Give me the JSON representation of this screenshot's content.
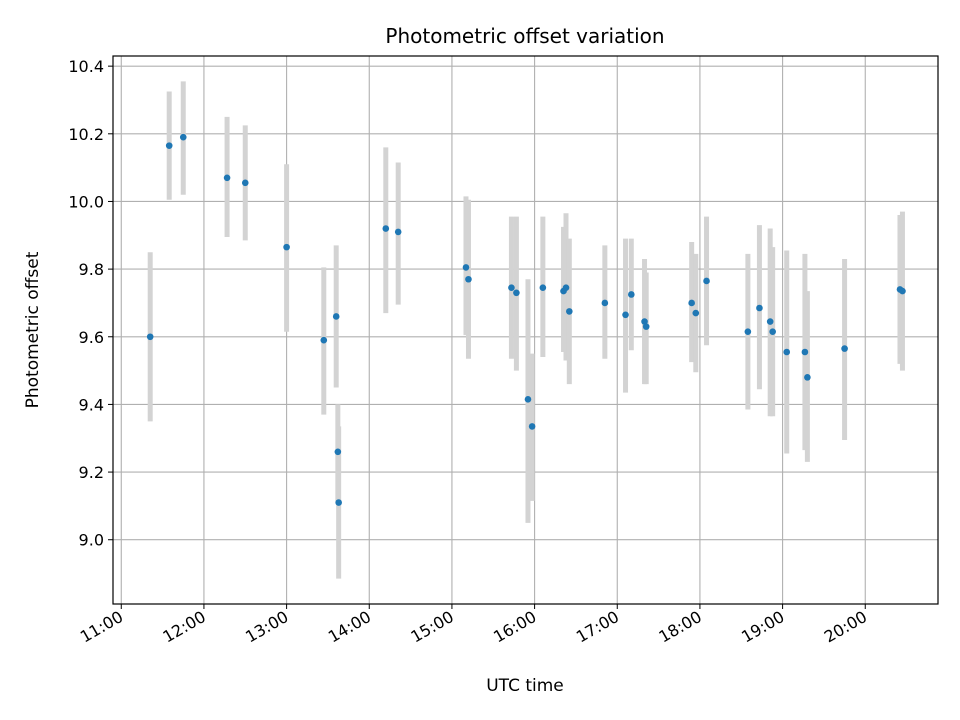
{
  "chart_data": {
    "type": "scatter",
    "title": "Photometric offset variation",
    "xlabel": "UTC time",
    "ylabel": "Photometric offset",
    "x_unit": "hours UTC",
    "xlim": [
      10.9,
      20.88
    ],
    "ylim": [
      8.81,
      10.43
    ],
    "xticks": [
      11,
      12,
      13,
      14,
      15,
      16,
      17,
      18,
      19,
      20
    ],
    "xtick_labels": [
      "11:00",
      "12:00",
      "13:00",
      "14:00",
      "15:00",
      "16:00",
      "17:00",
      "18:00",
      "19:00",
      "20:00"
    ],
    "yticks": [
      9.0,
      9.2,
      9.4,
      9.6,
      9.8,
      10.0,
      10.2,
      10.4
    ],
    "ytick_labels": [
      "9.0",
      "9.2",
      "9.4",
      "9.6",
      "9.8",
      "10.0",
      "10.2",
      "10.4"
    ],
    "grid": true,
    "point_color": "#1f77b4",
    "errorbar_color": "#d3d3d3",
    "points": [
      {
        "x": 11.35,
        "y": 9.6,
        "lo": 9.35,
        "hi": 9.85
      },
      {
        "x": 11.58,
        "y": 10.165,
        "lo": 10.005,
        "hi": 10.325
      },
      {
        "x": 11.75,
        "y": 10.19,
        "lo": 10.02,
        "hi": 10.355
      },
      {
        "x": 12.28,
        "y": 10.07,
        "lo": 9.895,
        "hi": 10.25
      },
      {
        "x": 12.5,
        "y": 10.055,
        "lo": 9.885,
        "hi": 10.225
      },
      {
        "x": 13.0,
        "y": 9.865,
        "lo": 9.615,
        "hi": 10.11
      },
      {
        "x": 13.45,
        "y": 9.59,
        "lo": 9.37,
        "hi": 9.805
      },
      {
        "x": 13.6,
        "y": 9.66,
        "lo": 9.45,
        "hi": 9.87
      },
      {
        "x": 13.62,
        "y": 9.26,
        "lo": 9.11,
        "hi": 9.4
      },
      {
        "x": 13.63,
        "y": 9.11,
        "lo": 8.885,
        "hi": 9.335
      },
      {
        "x": 14.2,
        "y": 9.92,
        "lo": 9.67,
        "hi": 10.16
      },
      {
        "x": 14.35,
        "y": 9.91,
        "lo": 9.695,
        "hi": 10.115
      },
      {
        "x": 15.17,
        "y": 9.805,
        "lo": 9.605,
        "hi": 10.015
      },
      {
        "x": 15.2,
        "y": 9.77,
        "lo": 9.535,
        "hi": 10.005
      },
      {
        "x": 15.72,
        "y": 9.745,
        "lo": 9.535,
        "hi": 9.955
      },
      {
        "x": 15.78,
        "y": 9.73,
        "lo": 9.5,
        "hi": 9.955
      },
      {
        "x": 15.92,
        "y": 9.415,
        "lo": 9.05,
        "hi": 9.77
      },
      {
        "x": 15.97,
        "y": 9.335,
        "lo": 9.115,
        "hi": 9.55
      },
      {
        "x": 16.1,
        "y": 9.745,
        "lo": 9.54,
        "hi": 9.955
      },
      {
        "x": 16.35,
        "y": 9.735,
        "lo": 9.555,
        "hi": 9.925
      },
      {
        "x": 16.38,
        "y": 9.745,
        "lo": 9.53,
        "hi": 9.965
      },
      {
        "x": 16.42,
        "y": 9.675,
        "lo": 9.46,
        "hi": 9.89
      },
      {
        "x": 16.85,
        "y": 9.7,
        "lo": 9.535,
        "hi": 9.87
      },
      {
        "x": 17.1,
        "y": 9.665,
        "lo": 9.435,
        "hi": 9.89
      },
      {
        "x": 17.17,
        "y": 9.725,
        "lo": 9.56,
        "hi": 9.89
      },
      {
        "x": 17.33,
        "y": 9.645,
        "lo": 9.46,
        "hi": 9.83
      },
      {
        "x": 17.35,
        "y": 9.63,
        "lo": 9.46,
        "hi": 9.79
      },
      {
        "x": 17.9,
        "y": 9.7,
        "lo": 9.525,
        "hi": 9.88
      },
      {
        "x": 17.95,
        "y": 9.67,
        "lo": 9.495,
        "hi": 9.845
      },
      {
        "x": 18.08,
        "y": 9.765,
        "lo": 9.575,
        "hi": 9.955
      },
      {
        "x": 18.58,
        "y": 9.615,
        "lo": 9.385,
        "hi": 9.845
      },
      {
        "x": 18.72,
        "y": 9.685,
        "lo": 9.445,
        "hi": 9.93
      },
      {
        "x": 18.85,
        "y": 9.645,
        "lo": 9.365,
        "hi": 9.92
      },
      {
        "x": 18.88,
        "y": 9.615,
        "lo": 9.365,
        "hi": 9.865
      },
      {
        "x": 19.05,
        "y": 9.555,
        "lo": 9.255,
        "hi": 9.855
      },
      {
        "x": 19.27,
        "y": 9.555,
        "lo": 9.265,
        "hi": 9.845
      },
      {
        "x": 19.3,
        "y": 9.48,
        "lo": 9.23,
        "hi": 9.735
      },
      {
        "x": 19.75,
        "y": 9.565,
        "lo": 9.295,
        "hi": 9.83
      },
      {
        "x": 20.42,
        "y": 9.74,
        "lo": 9.52,
        "hi": 9.96
      },
      {
        "x": 20.45,
        "y": 9.735,
        "lo": 9.5,
        "hi": 9.97
      }
    ]
  }
}
